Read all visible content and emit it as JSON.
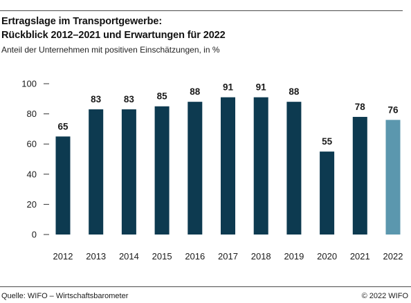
{
  "chart_data": {
    "type": "bar",
    "title": [
      "Ertragslage im Transportgewerbe:",
      "Rückblick 2012–2021 und Erwartungen für 2022"
    ],
    "subtitle": "Anteil der Unternehmen mit positiven Einschätzungen, in %",
    "categories": [
      "2012",
      "2013",
      "2014",
      "2015",
      "2016",
      "2017",
      "2018",
      "2019",
      "2020",
      "2021",
      "2022"
    ],
    "series": [
      {
        "values": [
          65,
          83,
          83,
          85,
          88,
          91,
          91,
          88,
          55,
          78,
          76
        ]
      }
    ],
    "bar_colors": [
      "#0d3a50",
      "#0d3a50",
      "#0d3a50",
      "#0d3a50",
      "#0d3a50",
      "#0d3a50",
      "#0d3a50",
      "#0d3a50",
      "#0d3a50",
      "#0d3a50",
      "#5b97ae"
    ],
    "data_labels": true,
    "ylim": [
      0,
      100
    ],
    "yticks": [
      0,
      20,
      40,
      60,
      80,
      100
    ],
    "grid": false
  },
  "footer": {
    "source": "Quelle: WIFO – Wirtschaftsbarometer",
    "copyright": "© 2022 WIFO"
  }
}
